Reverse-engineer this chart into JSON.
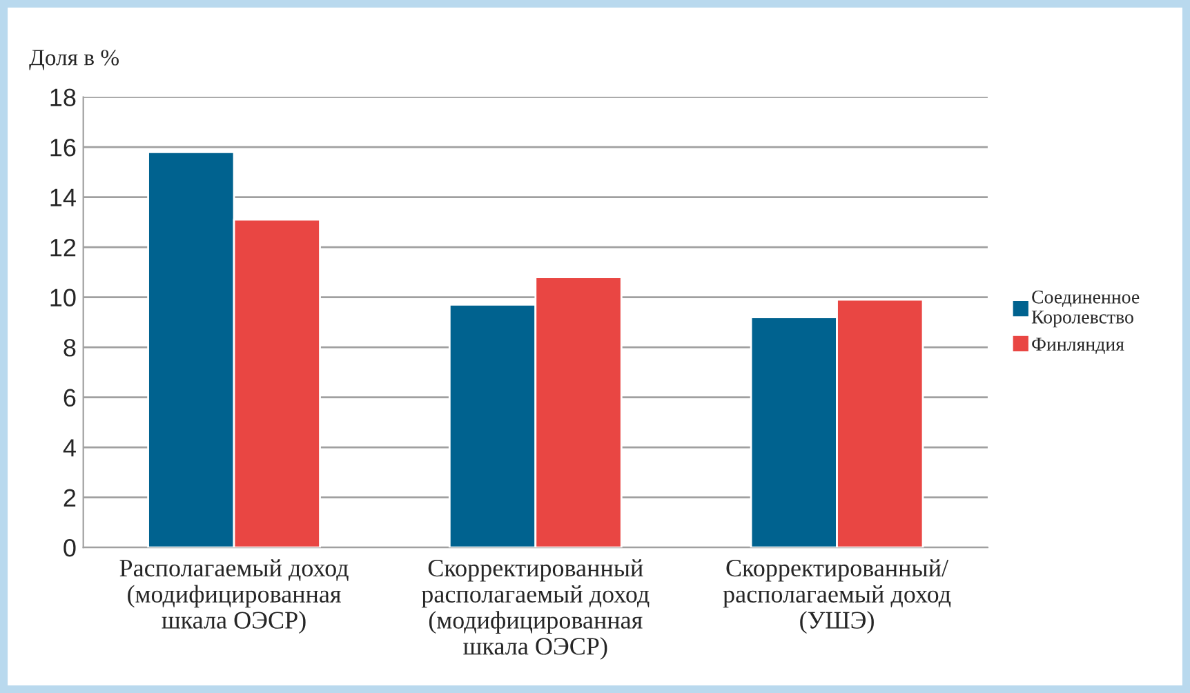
{
  "chart_data": {
    "type": "bar",
    "ylabel": "Доля в %",
    "categories": [
      "Располагаемый доход\n(модифицированная\nшкала ОЭСР)",
      "Скорректированный\nрасполагаемый доход\n(модифицированная\nшкала ОЭСР)",
      "Скорректированный/\nрасполагаемый доход\n(УШЭ)"
    ],
    "series": [
      {
        "name": "Соединенное\nКоролевство",
        "color": "#00628f",
        "values": [
          15.8,
          9.7,
          9.2
        ]
      },
      {
        "name": "Финляндия",
        "color": "#e94643",
        "values": [
          13.1,
          10.8,
          9.9
        ]
      }
    ],
    "ylim": [
      0,
      18
    ],
    "yticks": [
      0,
      2,
      4,
      6,
      8,
      10,
      12,
      14,
      16,
      18
    ],
    "grid": "y",
    "legend": "right"
  }
}
